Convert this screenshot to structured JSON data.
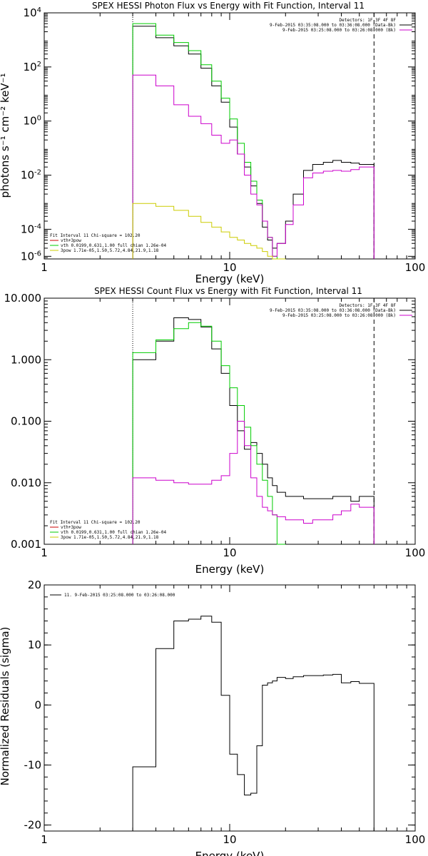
{
  "chart_data": [
    {
      "type": "line",
      "title": "SPEX HESSI Photon Flux vs Energy with Fit Function, Interval 11",
      "xlabel": "Energy (keV)",
      "ylabel": "photons s⁻¹ cm⁻² keV⁻¹",
      "xscale": "log",
      "yscale": "log",
      "xlim": [
        1,
        100
      ],
      "ylim": [
        8e-06,
        10000
      ],
      "xticks": [
        "1",
        "10",
        "100"
      ],
      "yticks": [
        {
          "v": 1e-05,
          "m": "10",
          "e": "-6"
        },
        {
          "v": 0.0001,
          "m": "10",
          "e": "-4"
        },
        {
          "v": 0.01,
          "m": "10",
          "e": "-2"
        },
        {
          "v": 1,
          "m": "10",
          "e": "0"
        },
        {
          "v": 100,
          "m": "10",
          "e": "2"
        },
        {
          "v": 10000,
          "m": "10",
          "e": "4"
        }
      ],
      "vlines": [
        {
          "x": 3,
          "style": "dotted"
        },
        {
          "x": 60,
          "style": "dashed"
        }
      ],
      "legend_tr": [
        "Detectors: 1F 3F 4F 8F",
        "9-Feb-2015 03:35:08.000 to 03:36:08.000 (Data-Bk)",
        "9-Feb-2015 03:25:08.000 to 03:26:08.000 (Bk)"
      ],
      "legend_bl": [
        "Fit Interval 11   Chi-square = 102.20",
        "vth+3pow",
        "vth 0.0199,0.631,1.00  full chian 1.26e-04",
        "3pow 1.71e-05,1.50,5.72,4.84,21.9,1.18"
      ],
      "series": [
        {
          "name": "Data-Bk",
          "color": "#000000",
          "edges": [
            3,
            4,
            5,
            6,
            7,
            8,
            9,
            10,
            11,
            12,
            13,
            14,
            15,
            16,
            17,
            18,
            20,
            22,
            25,
            28,
            32,
            36,
            40,
            45,
            50,
            60
          ],
          "values": [
            3200,
            1200,
            600,
            300,
            90,
            20,
            5,
            0.6,
            0.06,
            0.02,
            0.004,
            0.0009,
            0.00012,
            4e-05,
            2e-05,
            3e-05,
            0.0002,
            0.002,
            0.015,
            0.025,
            0.03,
            0.035,
            0.03,
            0.028,
            0.025
          ]
        },
        {
          "name": "vth+3pow",
          "color": "#00cc00",
          "edges": [
            3,
            4,
            5,
            6,
            7,
            8,
            9,
            10,
            11,
            12,
            13,
            14,
            15,
            16,
            17,
            18,
            20
          ],
          "values": [
            4000,
            1500,
            800,
            400,
            120,
            30,
            7,
            1.2,
            0.15,
            0.03,
            0.006,
            0.0012,
            0.0002,
            5e-05,
            1e-05,
            3e-06
          ]
        },
        {
          "name": "Bk",
          "color": "#cc00cc",
          "edges": [
            3,
            4,
            5,
            6,
            7,
            8,
            9,
            10,
            11,
            12,
            13,
            14,
            15,
            16,
            17,
            18,
            20,
            22,
            25,
            28,
            32,
            36,
            40,
            45,
            50,
            60
          ],
          "values": [
            50,
            20,
            4,
            1.5,
            0.8,
            0.3,
            0.15,
            0.2,
            0.06,
            0.01,
            0.002,
            0.0008,
            0.0002,
            5e-05,
            1e-05,
            3e-05,
            0.00015,
            0.0008,
            0.008,
            0.012,
            0.014,
            0.015,
            0.014,
            0.016,
            0.02
          ]
        },
        {
          "name": "3pow",
          "color": "#cccc00",
          "edges": [
            3,
            4,
            5,
            6,
            7,
            8,
            9,
            10,
            11,
            12,
            13,
            14,
            15,
            16,
            17,
            18,
            20
          ],
          "values": [
            0.0009,
            0.0007,
            0.0005,
            0.0003,
            0.00018,
            0.00012,
            8e-05,
            5e-05,
            4e-05,
            3e-05,
            2.5e-05,
            2e-05,
            1.5e-05,
            1e-05,
            8e-06,
            6e-06
          ]
        }
      ]
    },
    {
      "type": "line",
      "title": "SPEX HESSI Count Flux vs Energy with Fit Function, Interval 11",
      "xlabel": "Energy (keV)",
      "ylabel": "",
      "xscale": "log",
      "yscale": "log",
      "xlim": [
        1,
        100
      ],
      "ylim": [
        0.001,
        10
      ],
      "xticks": [
        "1",
        "10",
        "100"
      ],
      "yticks": [
        {
          "v": 0.001,
          "t": "0.001"
        },
        {
          "v": 0.01,
          "t": "0.010"
        },
        {
          "v": 0.1,
          "t": "0.100"
        },
        {
          "v": 1,
          "t": "1.000"
        },
        {
          "v": 10,
          "t": "10.000"
        }
      ],
      "vlines": [
        {
          "x": 3,
          "style": "dotted"
        },
        {
          "x": 60,
          "style": "dashed"
        }
      ],
      "legend_tr": [
        "Detectors: 1F 3F 4F 8F",
        "9-Feb-2015 03:35:08.000 to 03:36:08.000 (Data-Bk)",
        "9-Feb-2015 03:25:08.000 to 03:26:08.000 (Bk)"
      ],
      "legend_bl": [
        "Fit Interval 11   Chi-square = 102.20",
        "vth+3pow",
        "vth 0.0199,0.631,1.00  full chian 1.26e-04",
        "3pow 1.71e-05,1.50,5.72,4.84,21.9,1.18"
      ],
      "series": [
        {
          "name": "Data-Bk",
          "color": "#000000",
          "edges": [
            3,
            4,
            5,
            6,
            7,
            8,
            9,
            10,
            11,
            12,
            13,
            14,
            15,
            16,
            17,
            18,
            20,
            22,
            25,
            28,
            32,
            36,
            40,
            45,
            50,
            60
          ],
          "values": [
            1.0,
            2.0,
            4.8,
            4.5,
            3.4,
            1.5,
            0.6,
            0.18,
            0.07,
            0.035,
            0.045,
            0.03,
            0.02,
            0.012,
            0.009,
            0.007,
            0.006,
            0.006,
            0.0055,
            0.0055,
            0.0055,
            0.006,
            0.006,
            0.005,
            0.006
          ]
        },
        {
          "name": "vth+3pow",
          "color": "#00cc00",
          "edges": [
            3,
            4,
            5,
            6,
            7,
            8,
            9,
            10,
            11,
            12,
            13,
            14,
            15,
            16,
            17,
            18,
            20
          ],
          "values": [
            1.3,
            2.1,
            3.2,
            4.0,
            3.5,
            2.0,
            0.8,
            0.35,
            0.18,
            0.08,
            0.04,
            0.02,
            0.011,
            0.006,
            0.003,
            0.0008
          ]
        },
        {
          "name": "Bk",
          "color": "#cc00cc",
          "edges": [
            3,
            4,
            5,
            6,
            7,
            8,
            9,
            10,
            11,
            12,
            13,
            14,
            15,
            16,
            17,
            18,
            20,
            22,
            25,
            28,
            32,
            36,
            40,
            45,
            50,
            60
          ],
          "values": [
            0.012,
            0.011,
            0.01,
            0.0095,
            0.0095,
            0.011,
            0.013,
            0.03,
            0.1,
            0.04,
            0.012,
            0.006,
            0.004,
            0.0035,
            0.003,
            0.0028,
            0.0025,
            0.0025,
            0.0022,
            0.0025,
            0.0025,
            0.003,
            0.0035,
            0.0045,
            0.004
          ]
        }
      ]
    },
    {
      "type": "line",
      "title": "",
      "xlabel": "Energy (keV)",
      "ylabel": "Normalized Residuals (sigma)",
      "xscale": "log",
      "yscale": "linear",
      "xlim": [
        1,
        100
      ],
      "ylim": [
        -21,
        20
      ],
      "xticks": [
        "1",
        "10",
        "100"
      ],
      "yticks": [
        {
          "v": -20,
          "t": "-20"
        },
        {
          "v": -10,
          "t": "-10"
        },
        {
          "v": 0,
          "t": "0"
        },
        {
          "v": 10,
          "t": "10"
        },
        {
          "v": 20,
          "t": "20"
        }
      ],
      "legend_tl": [
        "11.  9-Feb-2015 03:25:08.000 to 03:26:08.000"
      ],
      "series": [
        {
          "name": "11.  9-Feb-2015 03:25:08.000 to 03:26:08.000",
          "color": "#000000",
          "edges": [
            3,
            4,
            5,
            6,
            7,
            8,
            9,
            10,
            11,
            12,
            13,
            14,
            15,
            16,
            17,
            18,
            20,
            22,
            25,
            28,
            32,
            36,
            40,
            45,
            50,
            60
          ],
          "values": [
            -10.3,
            9.4,
            14.0,
            14.3,
            14.8,
            13.8,
            1.6,
            -8.2,
            -11.6,
            -15.0,
            -14.7,
            -6.8,
            3.3,
            3.7,
            4.0,
            4.6,
            4.4,
            4.7,
            4.9,
            4.9,
            5.0,
            5.1,
            3.7,
            3.9,
            3.6
          ],
          "start_y": -21,
          "end_y": -21
        }
      ]
    }
  ]
}
